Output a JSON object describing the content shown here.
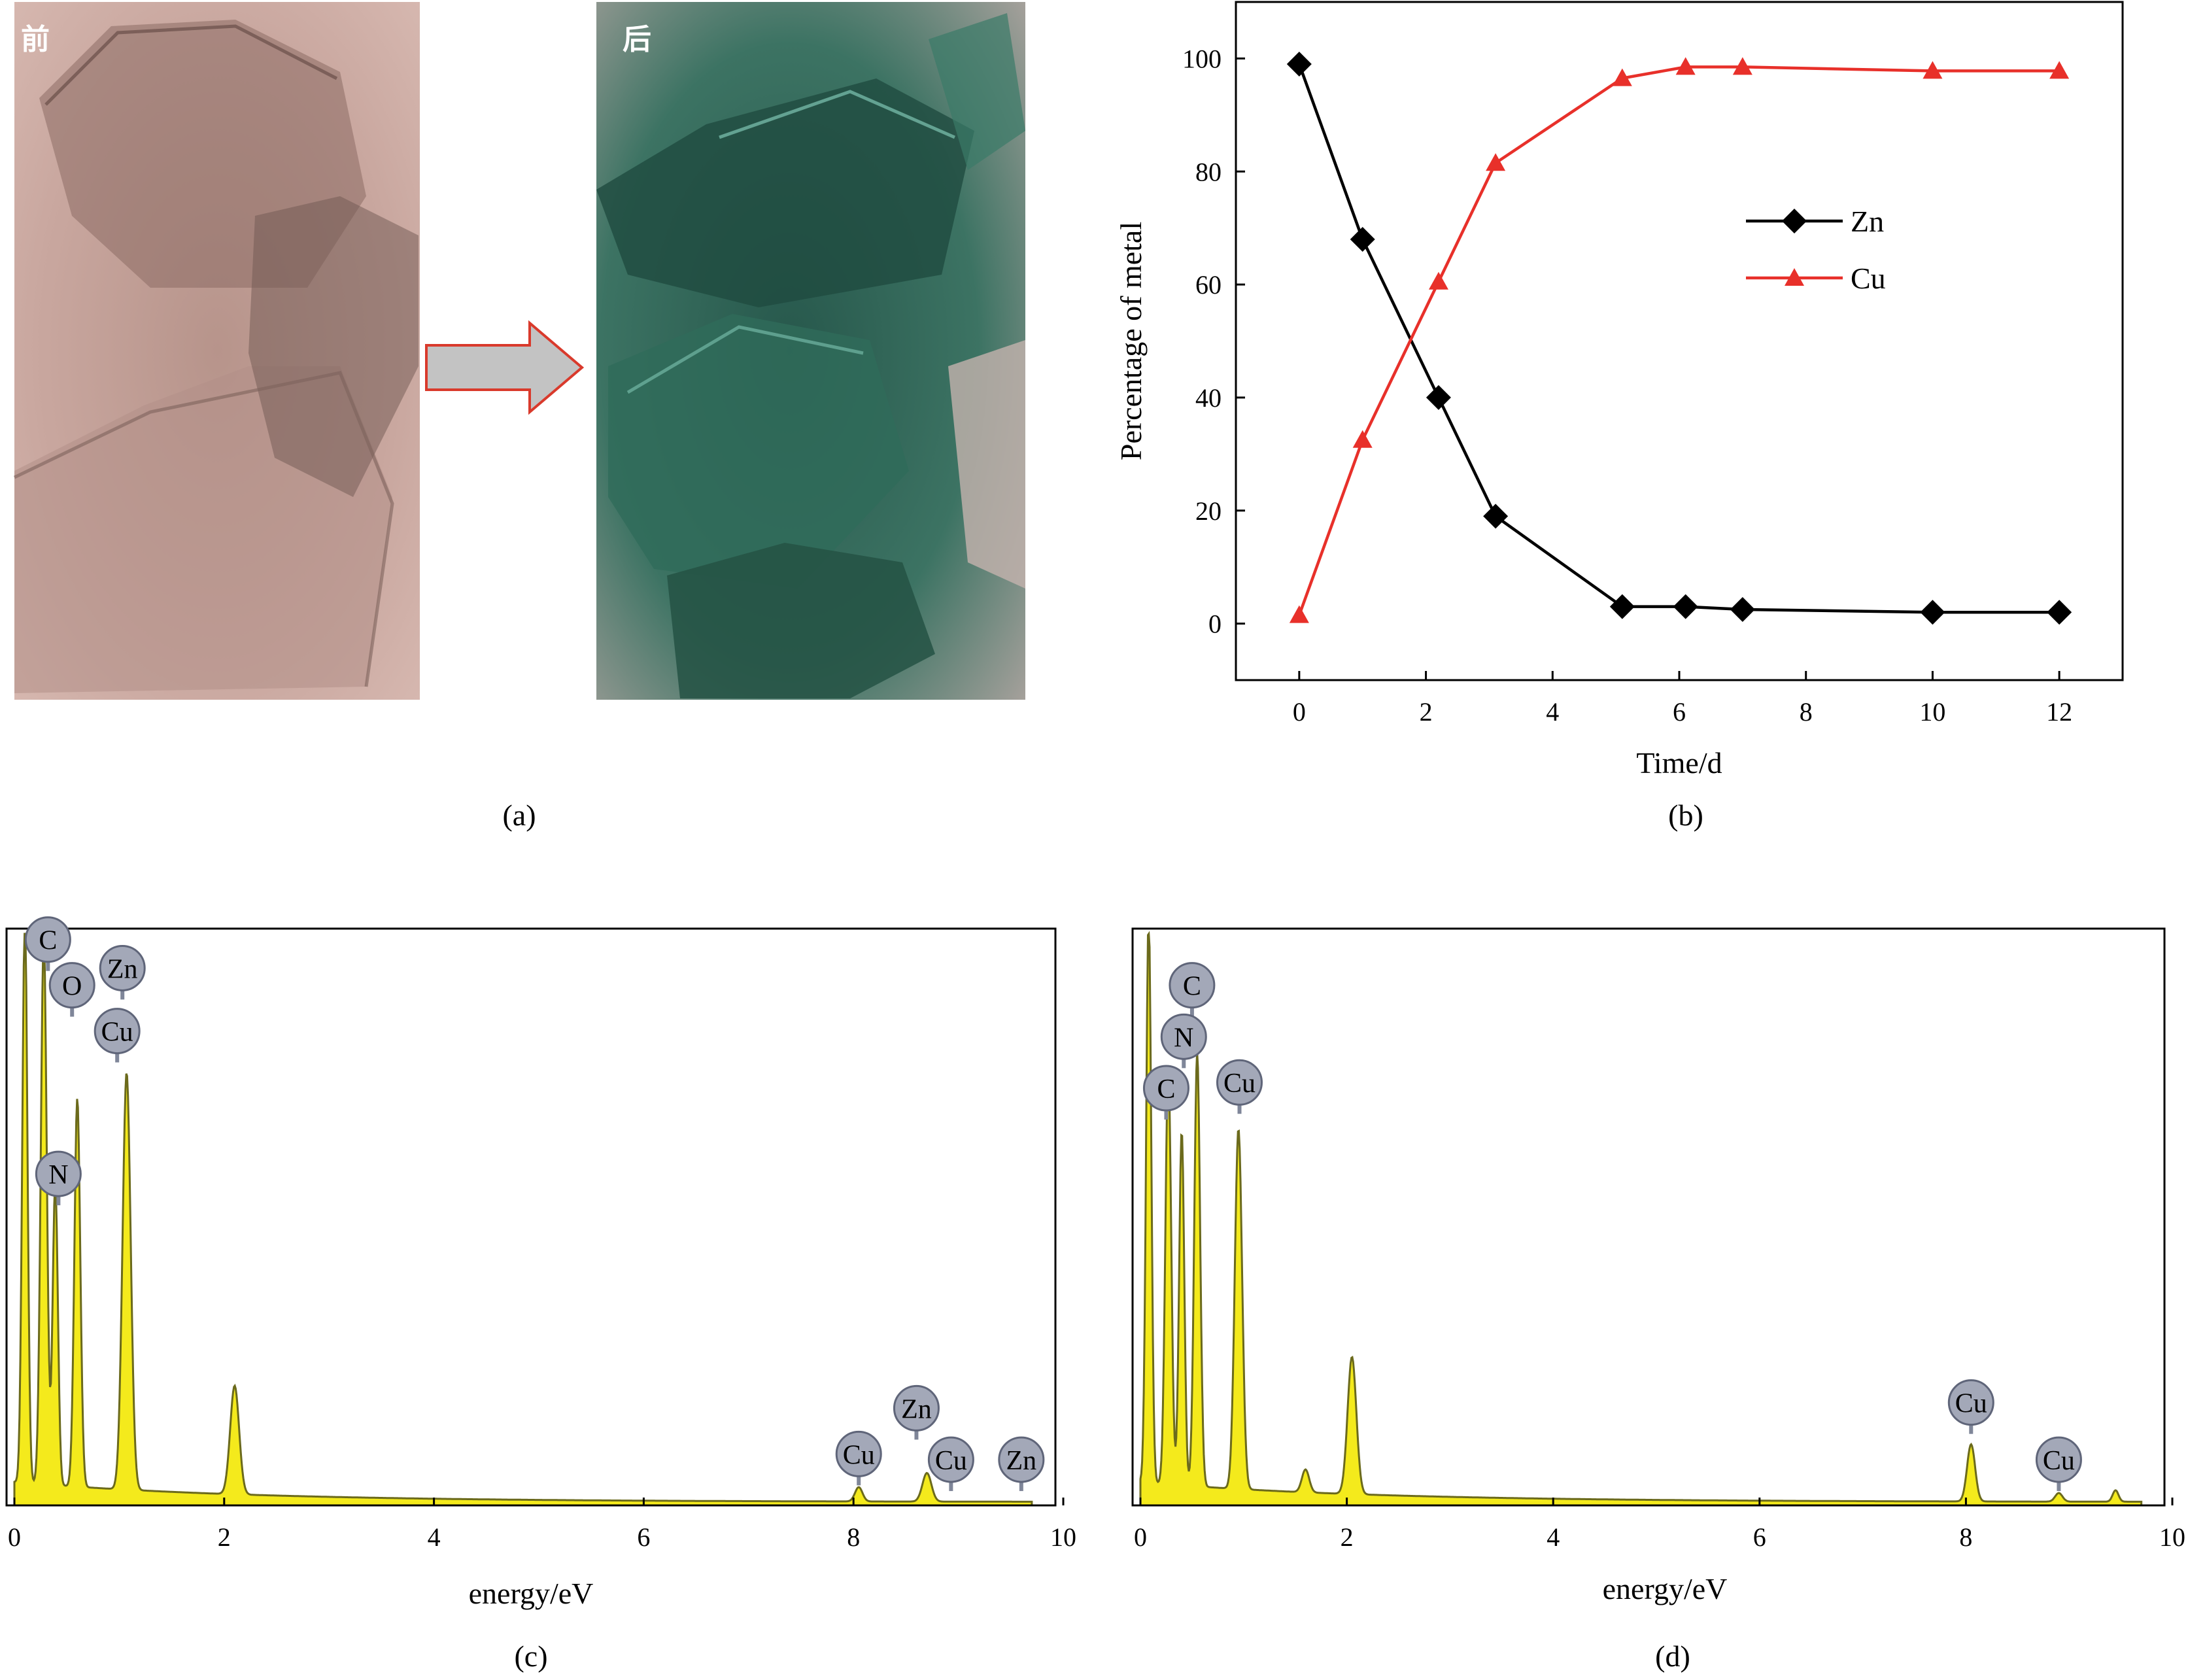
{
  "panels": [
    {
      "id": "a",
      "label": "(a)"
    },
    {
      "id": "b",
      "label": "(b)"
    },
    {
      "id": "c",
      "label": "(c)"
    },
    {
      "id": "d",
      "label": "(d)"
    }
  ],
  "micrographs": {
    "before_label": "前",
    "after_label": "后",
    "before_color": "#c9a79f",
    "after_color": "#2e6e5e"
  },
  "chart_data": [
    {
      "panel": "(b)",
      "type": "line",
      "xlabel": "Time/d",
      "ylabel": "Percentage of metal",
      "xlim": [
        -1,
        13
      ],
      "ylim": [
        -10,
        110
      ],
      "xticks": [
        0,
        2,
        4,
        6,
        8,
        10,
        12
      ],
      "yticks": [
        0,
        20,
        40,
        60,
        80,
        100
      ],
      "legend_position": "upper-right",
      "series": [
        {
          "name": "Zn",
          "marker": "diamond",
          "color": "#000000",
          "x": [
            0,
            1,
            2.2,
            3.1,
            5.1,
            6.1,
            7,
            10,
            12
          ],
          "y": [
            99,
            68,
            40,
            19,
            3,
            3,
            2.5,
            2,
            2
          ]
        },
        {
          "name": "Cu",
          "marker": "triangle",
          "color": "#e8302a",
          "x": [
            0,
            1,
            2.2,
            3.1,
            5.1,
            6.1,
            7,
            10,
            12
          ],
          "y": [
            1.5,
            32.5,
            60.5,
            81.5,
            96.5,
            98.5,
            98.5,
            97.8,
            97.8
          ]
        }
      ]
    },
    {
      "panel": "(c)",
      "type": "area",
      "xlabel": "energy/eV",
      "xlim": [
        0,
        10
      ],
      "xticks": [
        0,
        2,
        4,
        6,
        8,
        10
      ],
      "fill": "#f4ea1c",
      "peaks": [
        {
          "x": 0.1,
          "height": 1.0,
          "width": 0.035
        },
        {
          "x": 0.28,
          "height": 0.96,
          "width": 0.04
        },
        {
          "x": 0.39,
          "height": 0.53,
          "width": 0.035
        },
        {
          "x": 0.6,
          "height": 0.68,
          "width": 0.04
        },
        {
          "x": 1.07,
          "height": 0.73,
          "width": 0.055
        },
        {
          "x": 2.1,
          "height": 0.19,
          "width": 0.06
        },
        {
          "x": 8.05,
          "height": 0.025,
          "width": 0.05
        },
        {
          "x": 8.7,
          "height": 0.05,
          "width": 0.06
        }
      ],
      "labels": [
        {
          "text": "C",
          "x": 0.32,
          "height": 0.99
        },
        {
          "text": "O",
          "x": 0.55,
          "height": 0.91
        },
        {
          "text": "Zn",
          "x": 1.03,
          "height": 0.94
        },
        {
          "text": "Cu",
          "x": 0.98,
          "height": 0.83
        },
        {
          "text": "N",
          "x": 0.42,
          "height": 0.58
        },
        {
          "text": "Cu",
          "x": 8.05,
          "height": 0.09
        },
        {
          "text": "Zn",
          "x": 8.6,
          "height": 0.17
        },
        {
          "text": "Cu",
          "x": 8.93,
          "height": 0.08
        },
        {
          "text": "Zn",
          "x": 9.6,
          "height": 0.08
        }
      ]
    },
    {
      "panel": "(d)",
      "type": "area",
      "xlabel": "energy/eV",
      "xlim": [
        0,
        10
      ],
      "xticks": [
        0,
        2,
        4,
        6,
        8,
        10
      ],
      "fill": "#f4ea1c",
      "peaks": [
        {
          "x": 0.08,
          "height": 1.0,
          "width": 0.035
        },
        {
          "x": 0.27,
          "height": 0.73,
          "width": 0.04
        },
        {
          "x": 0.4,
          "height": 0.62,
          "width": 0.035
        },
        {
          "x": 0.55,
          "height": 0.76,
          "width": 0.04
        },
        {
          "x": 0.95,
          "height": 0.63,
          "width": 0.05
        },
        {
          "x": 1.6,
          "height": 0.04,
          "width": 0.05
        },
        {
          "x": 2.05,
          "height": 0.24,
          "width": 0.06
        },
        {
          "x": 8.05,
          "height": 0.1,
          "width": 0.055
        },
        {
          "x": 8.9,
          "height": 0.015,
          "width": 0.05
        },
        {
          "x": 9.45,
          "height": 0.02,
          "width": 0.04
        }
      ],
      "labels": [
        {
          "text": "C",
          "x": 0.5,
          "height": 0.91
        },
        {
          "text": "N",
          "x": 0.42,
          "height": 0.82
        },
        {
          "text": "C",
          "x": 0.25,
          "height": 0.73
        },
        {
          "text": "Cu",
          "x": 0.96,
          "height": 0.74
        },
        {
          "text": "Cu",
          "x": 8.05,
          "height": 0.18
        },
        {
          "text": "Cu",
          "x": 8.9,
          "height": 0.08
        }
      ]
    }
  ]
}
